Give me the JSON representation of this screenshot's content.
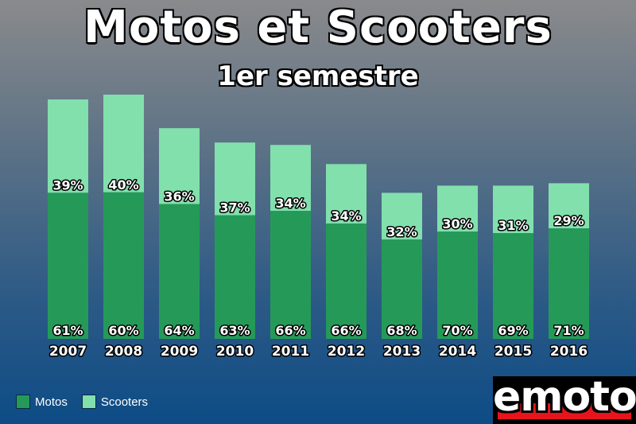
{
  "chart_data": {
    "type": "bar",
    "stacked": true,
    "title": "Motos et Scooters",
    "subtitle": "1er semestre",
    "categories": [
      "2007",
      "2008",
      "2009",
      "2010",
      "2011",
      "2012",
      "2013",
      "2014",
      "2015",
      "2016"
    ],
    "series": [
      {
        "name": "Motos",
        "color": "#259a58",
        "values": [
          61,
          60,
          64,
          63,
          66,
          66,
          68,
          70,
          69,
          71
        ]
      },
      {
        "name": "Scooters",
        "color": "#82e0ad",
        "values": [
          39,
          40,
          36,
          37,
          34,
          34,
          32,
          30,
          31,
          29
        ]
      }
    ],
    "relative_total_volume": [
      100,
      102,
      88,
      82,
      81,
      73,
      61,
      64,
      64,
      65
    ],
    "legend_position": "bottom-left",
    "grid": false
  },
  "legend": {
    "motos_label": "Motos",
    "scooters_label": "Scooters"
  },
  "logo": {
    "text": "emoto"
  }
}
